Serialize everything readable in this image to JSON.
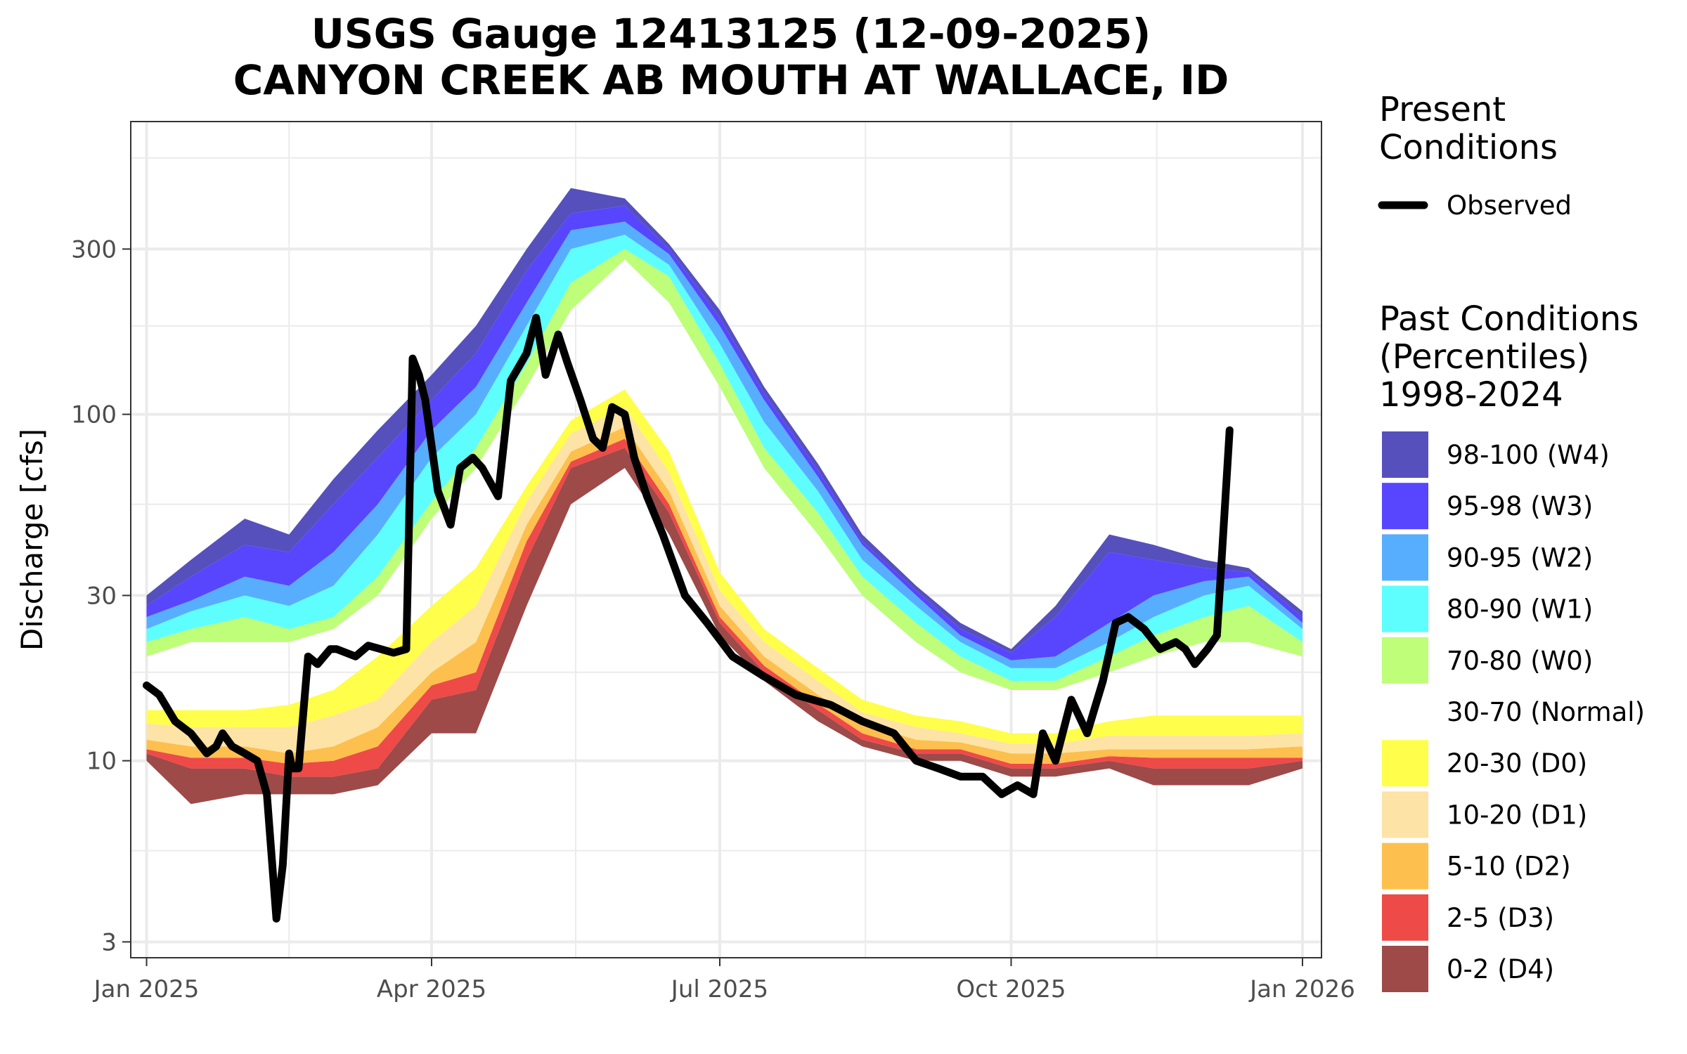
{
  "chart_data": {
    "type": "area",
    "title": "USGS Gauge 12413125 (12-09-2025)",
    "subtitle": "CANYON CREEK AB MOUTH AT WALLACE, ID",
    "xlabel": "",
    "ylabel": "Discharge [cfs]",
    "y_scale": "log",
    "ylim": [
      2.7,
      700
    ],
    "xlim": [
      "2024-12-27",
      "2026-01-07"
    ],
    "y_ticks": [
      3,
      10,
      30,
      100,
      300
    ],
    "y_tick_labels": [
      "3",
      "10",
      "30",
      "100",
      "300"
    ],
    "x_ticks": [
      "2025-01-01",
      "2025-04-01",
      "2025-07-01",
      "2025-10-01",
      "2026-01-01"
    ],
    "x_tick_labels": [
      "Jan 2025",
      "Apr 2025",
      "Jul 2025",
      "Oct 2025",
      "Jan 2026"
    ],
    "grid": true,
    "legend_position": "right",
    "present_legend_title": "Present Conditions",
    "past_legend_title": "Past Conditions (Percentiles) 1998-2024",
    "present_series": {
      "name": "Observed",
      "color": "#000000",
      "x": [
        "2025-01-01",
        "2025-01-05",
        "2025-01-10",
        "2025-01-15",
        "2025-01-20",
        "2025-01-23",
        "2025-01-25",
        "2025-01-28",
        "2025-02-01",
        "2025-02-05",
        "2025-02-08",
        "2025-02-11",
        "2025-02-13",
        "2025-02-15",
        "2025-02-16",
        "2025-02-18",
        "2025-02-21",
        "2025-02-24",
        "2025-02-28",
        "2025-03-02",
        "2025-03-05",
        "2025-03-08",
        "2025-03-12",
        "2025-03-16",
        "2025-03-20",
        "2025-03-24",
        "2025-03-26",
        "2025-03-28",
        "2025-03-30",
        "2025-04-03",
        "2025-04-07",
        "2025-04-10",
        "2025-04-14",
        "2025-04-17",
        "2025-04-22",
        "2025-04-26",
        "2025-05-01",
        "2025-05-04",
        "2025-05-07",
        "2025-05-11",
        "2025-05-14",
        "2025-05-18",
        "2025-05-22",
        "2025-05-25",
        "2025-05-28",
        "2025-06-01",
        "2025-06-04",
        "2025-06-08",
        "2025-06-13",
        "2025-06-20",
        "2025-06-27",
        "2025-07-05",
        "2025-07-15",
        "2025-07-25",
        "2025-08-05",
        "2025-08-15",
        "2025-08-25",
        "2025-09-01",
        "2025-09-08",
        "2025-09-15",
        "2025-09-22",
        "2025-09-28",
        "2025-10-03",
        "2025-10-08",
        "2025-10-11",
        "2025-10-15",
        "2025-10-20",
        "2025-10-25",
        "2025-10-30",
        "2025-11-03",
        "2025-11-07",
        "2025-11-12",
        "2025-11-17",
        "2025-11-22",
        "2025-11-25",
        "2025-11-28",
        "2025-12-02",
        "2025-12-05",
        "2025-12-09"
      ],
      "y": [
        16.5,
        15.5,
        13,
        12,
        10.5,
        11,
        12,
        11,
        10.5,
        10,
        8,
        3.5,
        5,
        10.5,
        9.5,
        9.5,
        20,
        19,
        21,
        21,
        20.5,
        20,
        21.5,
        21,
        20.5,
        21,
        145,
        130,
        110,
        60,
        48,
        70,
        75,
        70,
        58,
        125,
        150,
        190,
        130,
        170,
        140,
        110,
        85,
        80,
        105,
        100,
        75,
        58,
        45,
        30,
        25,
        20,
        17.5,
        15.5,
        14.5,
        13,
        12,
        10,
        9.5,
        9,
        9,
        8,
        8.5,
        8,
        12,
        10,
        15,
        12,
        17,
        25,
        26,
        24,
        21,
        22,
        21,
        19,
        21,
        23,
        90
      ]
    },
    "past_series": [
      {
        "name": "0-2 (D4)",
        "color": "#9d4a49",
        "x": [
          "2025-01-01",
          "2025-01-15",
          "2025-02-01",
          "2025-02-15",
          "2025-03-01",
          "2025-03-15",
          "2025-04-01",
          "2025-04-15",
          "2025-05-01",
          "2025-05-15",
          "2025-06-01",
          "2025-06-15",
          "2025-07-01",
          "2025-07-15",
          "2025-08-01",
          "2025-08-15",
          "2025-09-01",
          "2025-09-15",
          "2025-10-01",
          "2025-10-15",
          "2025-11-01",
          "2025-11-15",
          "2025-12-01",
          "2025-12-15",
          "2026-01-01"
        ],
        "lower": [
          10,
          7.5,
          8,
          8,
          8,
          8.5,
          12,
          12,
          28,
          55,
          70,
          45,
          23,
          17,
          13,
          11,
          10,
          10,
          9,
          9,
          9.5,
          8.5,
          8.5,
          8.5,
          9.5
        ],
        "upper": [
          10.5,
          9.5,
          9.5,
          9,
          9,
          9.5,
          15,
          16,
          38,
          70,
          80,
          52,
          25,
          18,
          14,
          11.5,
          10.5,
          10.5,
          9.5,
          9.5,
          10,
          9.5,
          9.5,
          9.5,
          10
        ]
      },
      {
        "name": "2-5 (D3)",
        "color": "#ee4a48",
        "x": [
          "2025-01-01",
          "2025-01-15",
          "2025-02-01",
          "2025-02-15",
          "2025-03-01",
          "2025-03-15",
          "2025-04-01",
          "2025-04-15",
          "2025-05-01",
          "2025-05-15",
          "2025-06-01",
          "2025-06-15",
          "2025-07-01",
          "2025-07-15",
          "2025-08-01",
          "2025-08-15",
          "2025-09-01",
          "2025-09-15",
          "2025-10-01",
          "2025-10-15",
          "2025-11-01",
          "2025-11-15",
          "2025-12-01",
          "2025-12-15",
          "2026-01-01"
        ],
        "lower": [
          10.5,
          9.5,
          9.5,
          9,
          9,
          9.5,
          15,
          16,
          38,
          70,
          80,
          52,
          25,
          18,
          14,
          11.5,
          10.5,
          10.5,
          9.5,
          9.5,
          10,
          9.5,
          9.5,
          9.5,
          10
        ],
        "upper": [
          10.8,
          10.2,
          10.2,
          9.8,
          10,
          11,
          16.5,
          18,
          43,
          73,
          85,
          55,
          26,
          18.8,
          14.6,
          12,
          10.8,
          10.8,
          9.8,
          9.8,
          10.3,
          10.2,
          10.2,
          10.2,
          10.2
        ]
      },
      {
        "name": "5-10 (D2)",
        "color": "#fdc04e",
        "x": [
          "2025-01-01",
          "2025-01-15",
          "2025-02-01",
          "2025-02-15",
          "2025-03-01",
          "2025-03-15",
          "2025-04-01",
          "2025-04-15",
          "2025-05-01",
          "2025-05-15",
          "2025-06-01",
          "2025-06-15",
          "2025-07-01",
          "2025-07-15",
          "2025-08-01",
          "2025-08-15",
          "2025-09-01",
          "2025-09-15",
          "2025-10-01",
          "2025-10-15",
          "2025-11-01",
          "2025-11-15",
          "2025-12-01",
          "2025-12-15",
          "2026-01-01"
        ],
        "lower": [
          10.8,
          10.2,
          10.2,
          9.8,
          10,
          11,
          16.5,
          18,
          43,
          73,
          85,
          55,
          26,
          18.8,
          14.6,
          12,
          10.8,
          10.8,
          9.8,
          9.8,
          10.3,
          10.2,
          10.2,
          10.2,
          10.2
        ],
        "upper": [
          11.5,
          11,
          11,
          10.5,
          11,
          12.5,
          18,
          22,
          48,
          78,
          92,
          60,
          28,
          20,
          15.5,
          12.8,
          11.5,
          11.3,
          10.5,
          10.5,
          10.8,
          10.8,
          10.8,
          10.8,
          11
        ]
      },
      {
        "name": "10-20 (D1)",
        "color": "#fde3a6",
        "x": [
          "2025-01-01",
          "2025-01-15",
          "2025-02-01",
          "2025-02-15",
          "2025-03-01",
          "2025-03-15",
          "2025-04-01",
          "2025-04-15",
          "2025-05-01",
          "2025-05-15",
          "2025-06-01",
          "2025-06-15",
          "2025-07-01",
          "2025-07-15",
          "2025-08-01",
          "2025-08-15",
          "2025-09-01",
          "2025-09-15",
          "2025-10-01",
          "2025-10-15",
          "2025-11-01",
          "2025-11-15",
          "2025-12-01",
          "2025-12-15",
          "2026-01-01"
        ],
        "lower": [
          11.5,
          11,
          11,
          10.5,
          11,
          12.5,
          18,
          22,
          48,
          78,
          92,
          60,
          28,
          20,
          15.5,
          12.8,
          11.5,
          11.3,
          10.5,
          10.5,
          10.8,
          10.8,
          10.8,
          10.8,
          11
        ],
        "upper": [
          12.8,
          12.5,
          12.5,
          12.5,
          13.5,
          15,
          22,
          28,
          56,
          88,
          105,
          68,
          31,
          22,
          17,
          13.8,
          12.5,
          12,
          11.2,
          11.2,
          11.8,
          11.8,
          11.8,
          11.8,
          12
        ]
      },
      {
        "name": "20-30 (D0)",
        "color": "#fffe4b",
        "x": [
          "2025-01-01",
          "2025-01-15",
          "2025-02-01",
          "2025-02-15",
          "2025-03-01",
          "2025-03-15",
          "2025-04-01",
          "2025-04-15",
          "2025-05-01",
          "2025-05-15",
          "2025-06-01",
          "2025-06-15",
          "2025-07-01",
          "2025-07-15",
          "2025-08-01",
          "2025-08-15",
          "2025-09-01",
          "2025-09-15",
          "2025-10-01",
          "2025-10-15",
          "2025-11-01",
          "2025-11-15",
          "2025-12-01",
          "2025-12-15",
          "2026-01-01"
        ],
        "lower": [
          12.8,
          12.5,
          12.5,
          12.5,
          13.5,
          15,
          22,
          28,
          56,
          88,
          105,
          68,
          31,
          22,
          17,
          13.8,
          12.5,
          12,
          11.2,
          11.2,
          11.8,
          11.8,
          11.8,
          11.8,
          12
        ],
        "upper": [
          14,
          14,
          14,
          14.5,
          16,
          20,
          28,
          36,
          62,
          96,
          118,
          78,
          35,
          24,
          18.5,
          15,
          13.5,
          13,
          12,
          12,
          13,
          13.5,
          13.5,
          13.5,
          13.5
        ]
      },
      {
        "name": "70-80 (W0)",
        "color": "#befe79",
        "x": [
          "2025-01-01",
          "2025-01-15",
          "2025-02-01",
          "2025-02-15",
          "2025-03-01",
          "2025-03-15",
          "2025-04-01",
          "2025-04-15",
          "2025-05-01",
          "2025-05-15",
          "2025-06-01",
          "2025-06-15",
          "2025-07-01",
          "2025-07-15",
          "2025-08-01",
          "2025-08-15",
          "2025-09-01",
          "2025-09-15",
          "2025-10-01",
          "2025-10-15",
          "2025-11-01",
          "2025-11-15",
          "2025-12-01",
          "2025-12-15",
          "2026-01-01"
        ],
        "lower": [
          20,
          22,
          22,
          22,
          24,
          30,
          50,
          70,
          120,
          200,
          280,
          210,
          120,
          70,
          45,
          30,
          22,
          18,
          16,
          16,
          18,
          20,
          22,
          22,
          20
        ],
        "upper": [
          22,
          24,
          26,
          24,
          26,
          34,
          56,
          80,
          140,
          240,
          300,
          250,
          140,
          80,
          52,
          34,
          25,
          20,
          17,
          17,
          20,
          23,
          26,
          28,
          22
        ]
      },
      {
        "name": "80-90 (W1)",
        "color": "#5efefe",
        "x": [
          "2025-01-01",
          "2025-01-15",
          "2025-02-01",
          "2025-02-15",
          "2025-03-01",
          "2025-03-15",
          "2025-04-01",
          "2025-04-15",
          "2025-05-01",
          "2025-05-15",
          "2025-06-01",
          "2025-06-15",
          "2025-07-01",
          "2025-07-15",
          "2025-08-01",
          "2025-08-15",
          "2025-09-01",
          "2025-09-15",
          "2025-10-01",
          "2025-10-15",
          "2025-11-01",
          "2025-11-15",
          "2025-12-01",
          "2025-12-15",
          "2026-01-01"
        ],
        "lower": [
          22,
          24,
          26,
          24,
          26,
          34,
          56,
          80,
          140,
          240,
          300,
          250,
          140,
          80,
          52,
          34,
          25,
          20,
          17,
          17,
          20,
          23,
          26,
          28,
          22
        ],
        "upper": [
          24,
          27,
          30,
          28,
          32,
          45,
          75,
          100,
          180,
          300,
          330,
          270,
          160,
          95,
          60,
          38,
          28,
          22,
          18.5,
          18.5,
          22,
          26,
          30,
          32,
          24
        ]
      },
      {
        "name": "90-95 (W2)",
        "color": "#58aefe",
        "x": [
          "2025-01-01",
          "2025-01-15",
          "2025-02-01",
          "2025-02-15",
          "2025-03-01",
          "2025-03-15",
          "2025-04-01",
          "2025-04-15",
          "2025-05-01",
          "2025-05-15",
          "2025-06-01",
          "2025-06-15",
          "2025-07-01",
          "2025-07-15",
          "2025-08-01",
          "2025-08-15",
          "2025-09-01",
          "2025-09-15",
          "2025-10-01",
          "2025-10-15",
          "2025-11-01",
          "2025-11-15",
          "2025-12-01",
          "2025-12-15",
          "2026-01-01"
        ],
        "lower": [
          24,
          27,
          30,
          28,
          32,
          45,
          75,
          100,
          180,
          300,
          330,
          270,
          160,
          95,
          60,
          38,
          28,
          22,
          18.5,
          18.5,
          22,
          26,
          30,
          32,
          24
        ],
        "upper": [
          26,
          29,
          34,
          32,
          40,
          55,
          90,
          120,
          210,
          340,
          360,
          290,
          180,
          110,
          66,
          42,
          30,
          23,
          19.5,
          20,
          25,
          30,
          33,
          34,
          25
        ]
      },
      {
        "name": "95-98 (W3)",
        "color": "#5746fe",
        "x": [
          "2025-01-01",
          "2025-01-15",
          "2025-02-01",
          "2025-02-15",
          "2025-03-01",
          "2025-03-15",
          "2025-04-01",
          "2025-04-15",
          "2025-05-01",
          "2025-05-15",
          "2025-06-01",
          "2025-06-15",
          "2025-07-01",
          "2025-07-15",
          "2025-08-01",
          "2025-08-15",
          "2025-09-01",
          "2025-09-15",
          "2025-10-01",
          "2025-10-15",
          "2025-11-01",
          "2025-11-15",
          "2025-12-01",
          "2025-12-15",
          "2026-01-01"
        ],
        "lower": [
          26,
          29,
          34,
          32,
          40,
          55,
          90,
          120,
          210,
          340,
          360,
          290,
          180,
          110,
          66,
          42,
          30,
          23,
          19.5,
          20,
          25,
          30,
          33,
          34,
          25
        ],
        "upper": [
          28,
          34,
          42,
          40,
          55,
          75,
          110,
          150,
          260,
          380,
          400,
          300,
          190,
          115,
          69,
          43,
          31,
          24,
          20.5,
          26,
          40,
          38,
          36,
          35,
          26
        ]
      },
      {
        "name": "98-100 (W4)",
        "color": "#5650bd",
        "x": [
          "2025-01-01",
          "2025-01-15",
          "2025-02-01",
          "2025-02-15",
          "2025-03-01",
          "2025-03-15",
          "2025-04-01",
          "2025-04-15",
          "2025-05-01",
          "2025-05-15",
          "2025-06-01",
          "2025-06-15",
          "2025-07-01",
          "2025-07-15",
          "2025-08-01",
          "2025-08-15",
          "2025-09-01",
          "2025-09-15",
          "2025-10-01",
          "2025-10-15",
          "2025-11-01",
          "2025-11-15",
          "2025-12-01",
          "2025-12-15",
          "2026-01-01"
        ],
        "lower": [
          28,
          34,
          42,
          40,
          55,
          75,
          110,
          150,
          260,
          380,
          400,
          300,
          190,
          115,
          69,
          43,
          31,
          24,
          20.5,
          26,
          40,
          38,
          36,
          35,
          26
        ],
        "upper": [
          30,
          38,
          50,
          45,
          65,
          90,
          130,
          180,
          300,
          450,
          420,
          310,
          200,
          120,
          72,
          45,
          32,
          25,
          21,
          28,
          45,
          42,
          38,
          36,
          27
        ]
      }
    ],
    "legend_entries": [
      {
        "label": "98-100 (W4)",
        "color": "#5650bd"
      },
      {
        "label": "95-98 (W3)",
        "color": "#5746fe"
      },
      {
        "label": "90-95 (W2)",
        "color": "#58aefe"
      },
      {
        "label": "80-90 (W1)",
        "color": "#5efefe"
      },
      {
        "label": "70-80 (W0)",
        "color": "#befe79"
      },
      {
        "label": "30-70 (Normal)",
        "color": "#ffffff"
      },
      {
        "label": "20-30 (D0)",
        "color": "#fffe4b"
      },
      {
        "label": "10-20 (D1)",
        "color": "#fde3a6"
      },
      {
        "label": "5-10 (D2)",
        "color": "#fdc04e"
      },
      {
        "label": "2-5 (D3)",
        "color": "#ee4a48"
      },
      {
        "label": "0-2 (D4)",
        "color": "#9d4a49"
      }
    ]
  }
}
